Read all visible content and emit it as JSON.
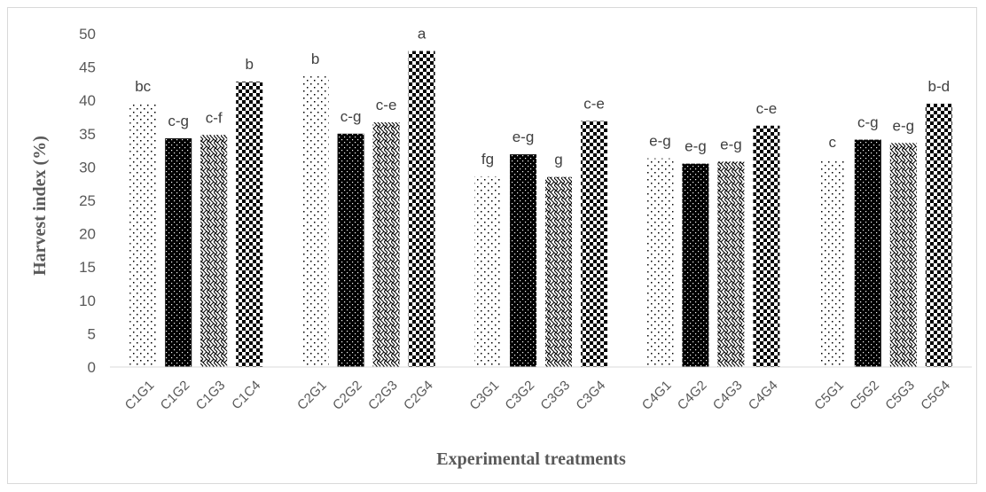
{
  "chart_data": {
    "type": "bar",
    "title": "",
    "xlabel": "Experimental   treatments",
    "ylabel": "Harvest index (%)",
    "ylim": [
      0,
      50
    ],
    "yticks": [
      0,
      5,
      10,
      15,
      20,
      25,
      30,
      35,
      40,
      45,
      50
    ],
    "grid": false,
    "legend": "none",
    "pattern_colors": [
      "#000000",
      "#ffffff"
    ],
    "groups": [
      {
        "bars": [
          {
            "category": "C1G1",
            "value": 39.5,
            "label": "bc",
            "pattern": "sparse-dots"
          },
          {
            "category": "C1G2",
            "value": 34.3,
            "label": "c-g",
            "pattern": "dense-dots"
          },
          {
            "category": "C1G3",
            "value": 34.8,
            "label": "c-f",
            "pattern": "weave"
          },
          {
            "category": "C1C4",
            "value": 42.8,
            "label": "b",
            "pattern": "checker"
          }
        ]
      },
      {
        "bars": [
          {
            "category": "C2G1",
            "value": 43.6,
            "label": "b",
            "pattern": "sparse-dots"
          },
          {
            "category": "C2G2",
            "value": 35.0,
            "label": "c-g",
            "pattern": "dense-dots"
          },
          {
            "category": "C2G3",
            "value": 36.7,
            "label": "c-e",
            "pattern": "weave"
          },
          {
            "category": "C2G4",
            "value": 47.4,
            "label": "a",
            "pattern": "checker"
          }
        ]
      },
      {
        "bars": [
          {
            "category": "C3G1",
            "value": 28.6,
            "label": "fg",
            "pattern": "sparse-dots"
          },
          {
            "category": "C3G2",
            "value": 31.9,
            "label": "e-g",
            "pattern": "dense-dots"
          },
          {
            "category": "C3G3",
            "value": 28.5,
            "label": "g",
            "pattern": "weave"
          },
          {
            "category": "C3G4",
            "value": 36.9,
            "label": "c-e",
            "pattern": "checker"
          }
        ]
      },
      {
        "bars": [
          {
            "category": "C4G1",
            "value": 31.3,
            "label": "e-g",
            "pattern": "sparse-dots"
          },
          {
            "category": "C4G2",
            "value": 30.5,
            "label": "e-g",
            "pattern": "dense-dots"
          },
          {
            "category": "C4G3",
            "value": 30.8,
            "label": "e-g",
            "pattern": "weave"
          },
          {
            "category": "C4G4",
            "value": 36.2,
            "label": "c-e",
            "pattern": "checker"
          }
        ]
      },
      {
        "bars": [
          {
            "category": "C5G1",
            "value": 31.1,
            "label": "c",
            "pattern": "sparse-dots"
          },
          {
            "category": "C5G2",
            "value": 34.1,
            "label": "c-g",
            "pattern": "dense-dots"
          },
          {
            "category": "C5G3",
            "value": 33.6,
            "label": "e-g",
            "pattern": "weave"
          },
          {
            "category": "C5G4",
            "value": 39.5,
            "label": "b-d",
            "pattern": "checker"
          }
        ]
      }
    ]
  }
}
